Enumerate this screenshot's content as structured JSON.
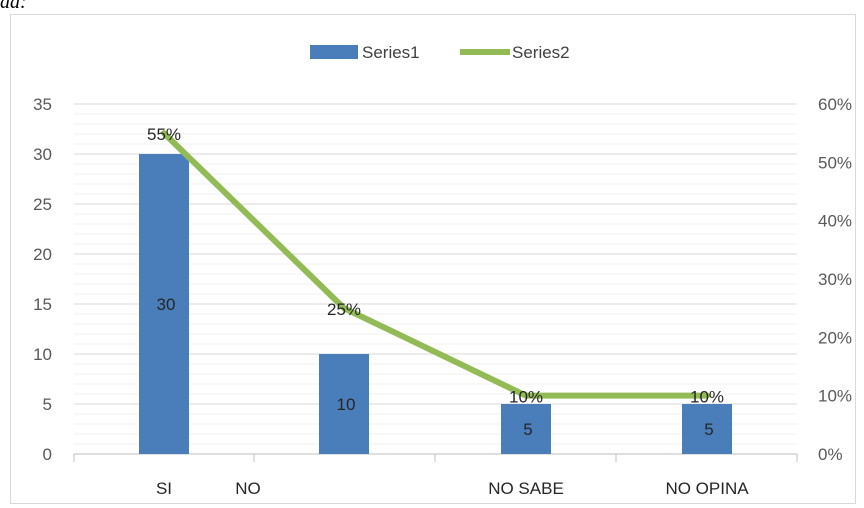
{
  "page": {
    "top_fragment": "da:"
  },
  "chart_data": {
    "type": "bar",
    "title": "",
    "xlabel": "",
    "ylabel": "",
    "ylim": [
      0,
      35
    ],
    "y_ticks": [
      0,
      5,
      10,
      15,
      20,
      25,
      30,
      35
    ],
    "y2lim": [
      0,
      0.6
    ],
    "y2_ticks": [
      "0%",
      "10%",
      "20%",
      "30%",
      "40%",
      "50%",
      "60%"
    ],
    "categories": [
      "SI",
      "NO",
      "NO SABE",
      "NO OPINA"
    ],
    "legend_position": "top",
    "grid": true,
    "series": [
      {
        "name": "Series1",
        "type": "bar",
        "axis": "left",
        "color": "#4a7ebb",
        "values": [
          30,
          10,
          5,
          5
        ],
        "labels": [
          "30",
          "10",
          "5",
          "5"
        ]
      },
      {
        "name": "Series2",
        "type": "line",
        "axis": "right",
        "color": "#93bb55",
        "values": [
          0.55,
          0.25,
          0.1,
          0.1
        ],
        "labels": [
          "55%",
          "25%",
          "10%",
          "10%"
        ]
      }
    ]
  }
}
